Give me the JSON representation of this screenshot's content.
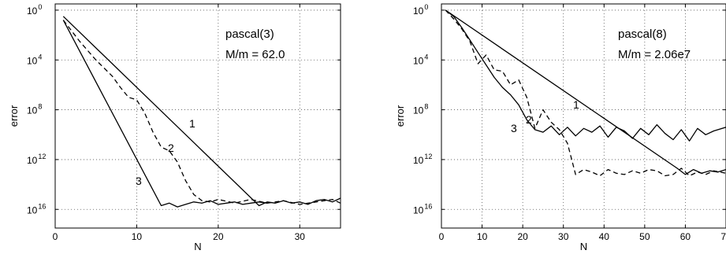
{
  "chart_data": [
    {
      "type": "line",
      "annotation_lines": [
        "pascal(3)",
        "M/m = 62.0"
      ],
      "xlabel": "N",
      "ylabel": "error",
      "xlim": [
        0,
        35
      ],
      "ylim_exponent": [
        -17.5,
        0.5
      ],
      "y_scale": "log",
      "grid": true,
      "x_ticks": [
        "0",
        "10",
        "20",
        "30"
      ],
      "y_ticks": [
        {
          "base": "10",
          "exp": "0"
        },
        {
          "base": "10",
          "exp": "4"
        },
        {
          "base": "10",
          "exp": "8"
        },
        {
          "base": "10",
          "exp": "12"
        },
        {
          "base": "10",
          "exp": "16"
        }
      ],
      "series": [
        {
          "name": "1",
          "style": "solid",
          "x": [
            1,
            25,
            26,
            27,
            28,
            29,
            30,
            31,
            32,
            33,
            34,
            35
          ],
          "log10_y": [
            -0.5,
            -15.7,
            -15.4,
            -15.5,
            -15.3,
            -15.5,
            -15.4,
            -15.6,
            -15.3,
            -15.2,
            -15.4,
            -15.1
          ]
        },
        {
          "name": "2",
          "style": "dashed",
          "x": [
            1,
            3,
            5,
            7,
            8,
            9,
            10,
            11,
            12,
            13,
            14,
            15,
            16,
            17,
            18,
            19,
            20,
            22,
            24,
            26,
            28,
            30,
            32,
            34,
            35
          ],
          "log10_y": [
            -0.8,
            -2.5,
            -4.0,
            -5.3,
            -6.2,
            -7.0,
            -7.2,
            -8.3,
            -9.8,
            -11.0,
            -11.3,
            -12.2,
            -13.7,
            -14.8,
            -15.3,
            -15.4,
            -15.2,
            -15.5,
            -15.2,
            -15.5,
            -15.3,
            -15.6,
            -15.4,
            -15.2,
            -15.5
          ]
        },
        {
          "name": "3",
          "style": "solid",
          "x": [
            1,
            13,
            14,
            15,
            16,
            17,
            18,
            19,
            20,
            21,
            22,
            23,
            24,
            25,
            26
          ],
          "log10_y": [
            -0.8,
            -15.7,
            -15.5,
            -15.8,
            -15.6,
            -15.4,
            -15.5,
            -15.3,
            -15.6,
            -15.5,
            -15.4,
            -15.6,
            -15.5,
            -15.4,
            -15.5
          ]
        }
      ]
    },
    {
      "type": "line",
      "annotation_lines": [
        "pascal(8)",
        "M/m = 2.06e7"
      ],
      "xlabel": "N",
      "ylabel": "error",
      "xlim": [
        0,
        70
      ],
      "ylim_exponent": [
        -17.5,
        0.5
      ],
      "y_scale": "log",
      "grid": true,
      "x_ticks": [
        "0",
        "10",
        "20",
        "30",
        "40",
        "50",
        "60",
        "70"
      ],
      "y_ticks": [
        {
          "base": "10",
          "exp": "0"
        },
        {
          "base": "10",
          "exp": "4"
        },
        {
          "base": "10",
          "exp": "8"
        },
        {
          "base": "10",
          "exp": "12"
        },
        {
          "base": "10",
          "exp": "16"
        }
      ],
      "series": [
        {
          "name": "1",
          "style": "solid",
          "x": [
            1,
            58,
            60,
            62,
            64,
            66,
            68,
            70
          ],
          "log10_y": [
            0.0,
            -12.7,
            -13.2,
            -12.8,
            -13.1,
            -12.9,
            -13.0,
            -12.8
          ]
        },
        {
          "name": "2",
          "style": "dashed",
          "x": [
            1,
            3,
            5,
            7,
            9,
            11,
            13,
            15,
            17,
            19,
            21,
            23,
            25,
            27,
            29,
            31,
            33,
            35,
            37,
            39,
            41,
            43,
            45,
            47,
            49,
            51,
            53,
            55,
            57,
            59,
            61,
            63,
            65,
            67,
            70
          ],
          "log10_y": [
            0.0,
            -0.7,
            -1.5,
            -2.5,
            -4.3,
            -3.6,
            -4.8,
            -4.9,
            -6.0,
            -5.6,
            -7.0,
            -9.5,
            -8.0,
            -9.0,
            -9.6,
            -10.7,
            -13.2,
            -12.8,
            -13.0,
            -13.3,
            -12.8,
            -13.1,
            -13.2,
            -12.9,
            -13.1,
            -12.8,
            -12.9,
            -13.3,
            -13.2,
            -12.7,
            -13.3,
            -13.0,
            -13.2,
            -12.9,
            -13.1
          ]
        },
        {
          "name": "3",
          "style": "solid",
          "x": [
            1,
            3,
            5,
            7,
            9,
            11,
            13,
            15,
            17,
            19,
            21,
            23,
            25,
            27,
            29,
            31,
            33,
            35,
            37,
            39,
            41,
            43,
            45,
            47,
            49,
            51,
            53,
            55,
            57,
            59,
            61,
            63,
            65,
            67,
            70
          ],
          "log10_y": [
            0.0,
            -0.5,
            -1.4,
            -2.4,
            -3.4,
            -4.4,
            -5.4,
            -6.2,
            -6.8,
            -7.6,
            -8.8,
            -9.6,
            -9.8,
            -9.3,
            -10.0,
            -9.4,
            -10.1,
            -9.5,
            -9.8,
            -9.3,
            -10.2,
            -9.4,
            -9.7,
            -10.3,
            -9.5,
            -10.0,
            -9.2,
            -9.9,
            -10.4,
            -9.6,
            -10.5,
            -9.5,
            -10.0,
            -9.7,
            -9.4
          ]
        }
      ]
    }
  ]
}
